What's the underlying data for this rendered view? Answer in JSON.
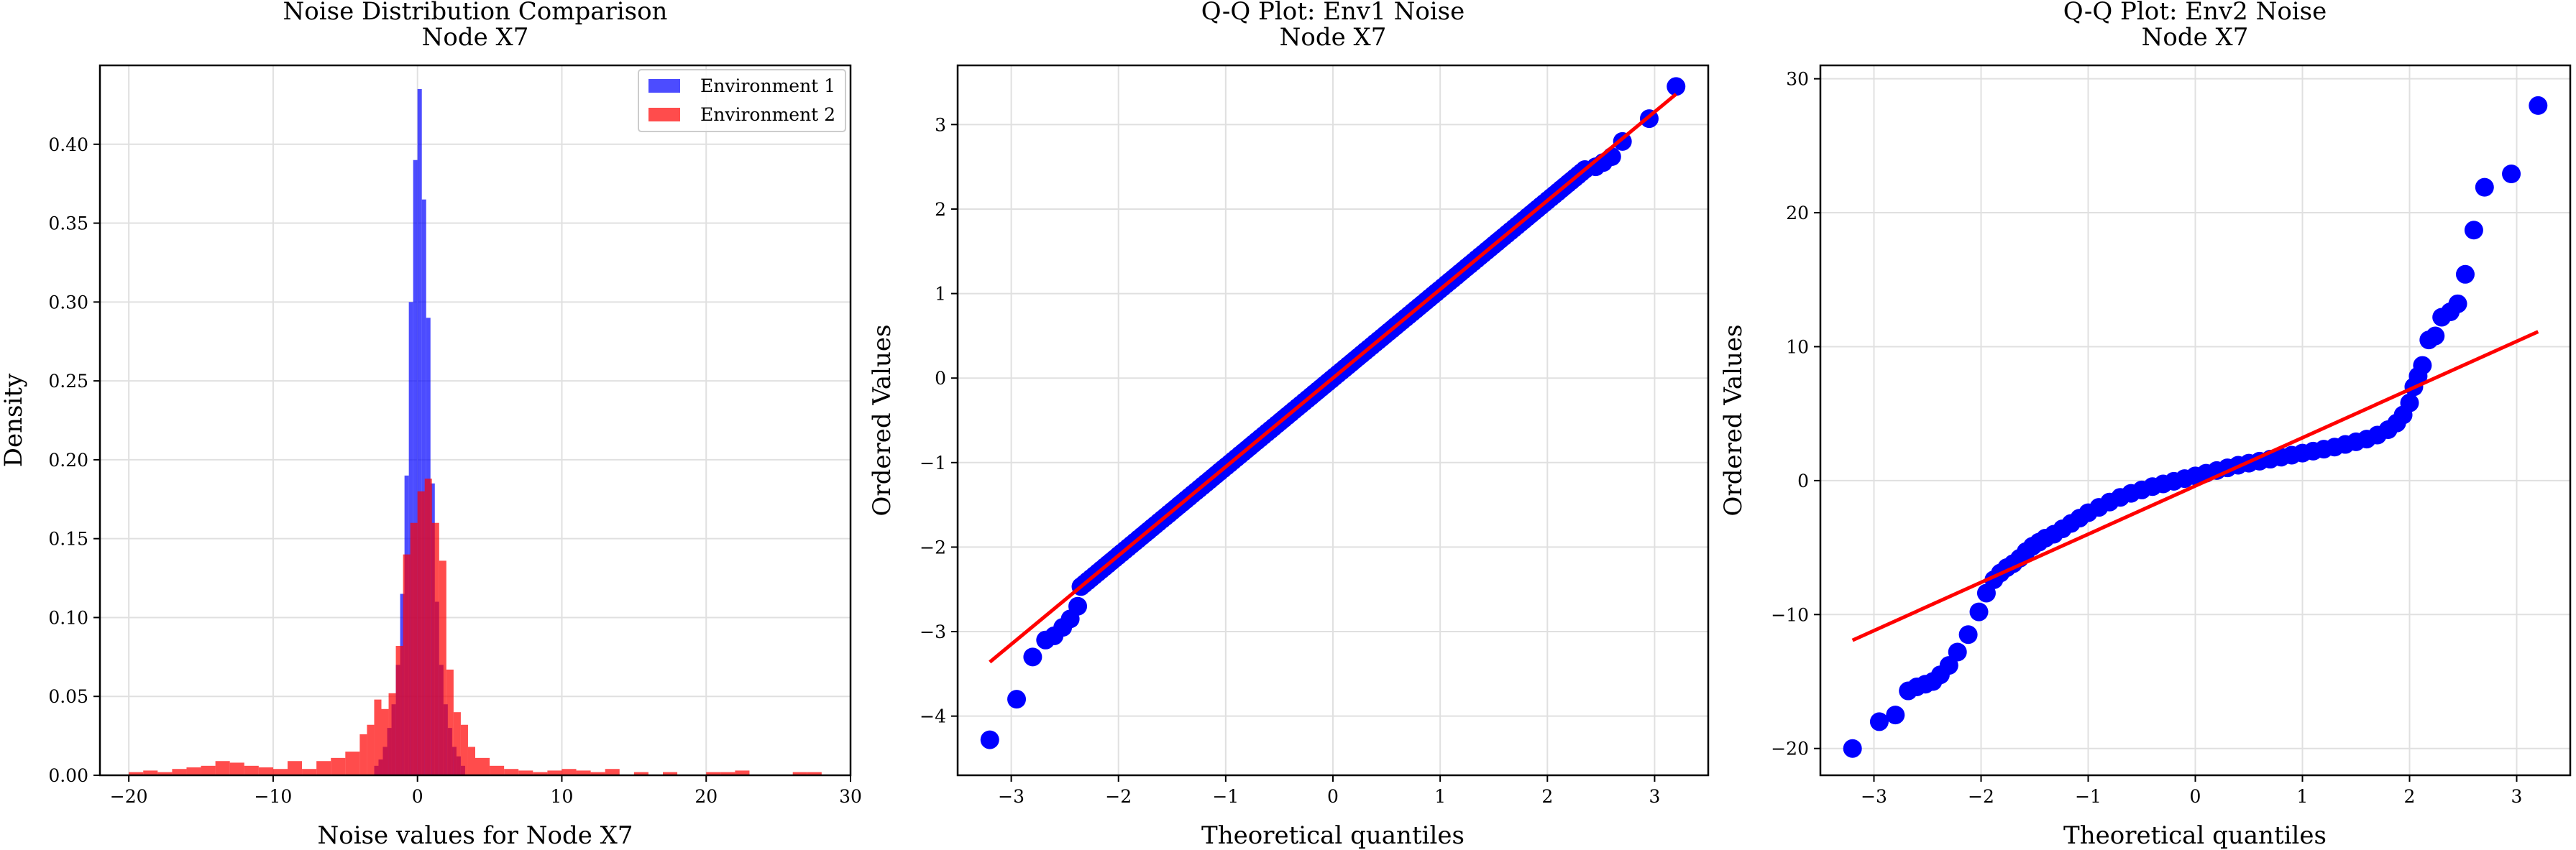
{
  "chart_data": [
    {
      "type": "histogram",
      "title": "Noise Distribution Comparison",
      "subtitle": "Node X7",
      "xlabel": "Noise values for Node X7",
      "ylabel": "Density",
      "xlim": [
        -22,
        30
      ],
      "ylim": [
        0,
        0.45
      ],
      "xticks": [
        -20,
        -10,
        0,
        10,
        20,
        30
      ],
      "yticks": [
        0.0,
        0.05,
        0.1,
        0.15,
        0.2,
        0.25,
        0.3,
        0.35,
        0.4
      ],
      "grid": true,
      "legend": "top-right",
      "colors": {
        "env1": "#0000ff",
        "env2": "#ff0000"
      },
      "series": [
        {
          "name": "Environment 1",
          "color": "#0000ff",
          "alpha": 0.7,
          "bins": [
            [
              -3.0,
              -2.7,
              0.006
            ],
            [
              -2.7,
              -2.4,
              0.01
            ],
            [
              -2.4,
              -2.1,
              0.018
            ],
            [
              -2.1,
              -1.8,
              0.03
            ],
            [
              -1.8,
              -1.5,
              0.045
            ],
            [
              -1.5,
              -1.2,
              0.07
            ],
            [
              -1.2,
              -0.9,
              0.115
            ],
            [
              -0.9,
              -0.6,
              0.19
            ],
            [
              -0.6,
              -0.3,
              0.3
            ],
            [
              -0.3,
              0.0,
              0.39
            ],
            [
              0.0,
              0.3,
              0.435
            ],
            [
              0.3,
              0.6,
              0.365
            ],
            [
              0.6,
              0.9,
              0.29
            ],
            [
              0.9,
              1.2,
              0.185
            ],
            [
              1.2,
              1.5,
              0.11
            ],
            [
              1.5,
              1.8,
              0.07
            ],
            [
              1.8,
              2.1,
              0.045
            ],
            [
              2.1,
              2.4,
              0.03
            ],
            [
              2.4,
              2.7,
              0.018
            ],
            [
              2.7,
              3.0,
              0.012
            ],
            [
              3.0,
              3.3,
              0.006
            ]
          ]
        },
        {
          "name": "Environment 2",
          "color": "#ff0000",
          "alpha": 0.7,
          "bins": [
            [
              -20.0,
              -19.0,
              0.002
            ],
            [
              -19.0,
              -18.0,
              0.003
            ],
            [
              -18.0,
              -17.0,
              0.002
            ],
            [
              -17.0,
              -16.0,
              0.004
            ],
            [
              -16.0,
              -15.0,
              0.005
            ],
            [
              -15.0,
              -14.0,
              0.006
            ],
            [
              -14.0,
              -13.0,
              0.009
            ],
            [
              -13.0,
              -12.0,
              0.008
            ],
            [
              -12.0,
              -11.0,
              0.006
            ],
            [
              -11.0,
              -10.0,
              0.005
            ],
            [
              -10.0,
              -9.0,
              0.004
            ],
            [
              -9.0,
              -8.0,
              0.009
            ],
            [
              -8.0,
              -7.0,
              0.004
            ],
            [
              -7.0,
              -6.0,
              0.009
            ],
            [
              -6.0,
              -5.0,
              0.011
            ],
            [
              -5.0,
              -4.0,
              0.015
            ],
            [
              -4.0,
              -3.5,
              0.026
            ],
            [
              -3.5,
              -3.0,
              0.032
            ],
            [
              -3.0,
              -2.5,
              0.048
            ],
            [
              -2.5,
              -2.0,
              0.042
            ],
            [
              -2.0,
              -1.5,
              0.052
            ],
            [
              -1.5,
              -1.0,
              0.082
            ],
            [
              -1.0,
              -0.5,
              0.14
            ],
            [
              -0.5,
              0.0,
              0.16
            ],
            [
              0.0,
              0.5,
              0.18
            ],
            [
              0.5,
              1.0,
              0.188
            ],
            [
              1.0,
              1.5,
              0.16
            ],
            [
              1.5,
              2.0,
              0.136
            ],
            [
              2.0,
              2.5,
              0.067
            ],
            [
              2.5,
              3.0,
              0.04
            ],
            [
              3.0,
              3.5,
              0.032
            ],
            [
              3.5,
              4.0,
              0.018
            ],
            [
              4.0,
              5.0,
              0.011
            ],
            [
              5.0,
              6.0,
              0.006
            ],
            [
              6.0,
              7.0,
              0.004
            ],
            [
              7.0,
              8.0,
              0.003
            ],
            [
              8.0,
              9.0,
              0.002
            ],
            [
              9.0,
              10.0,
              0.003
            ],
            [
              10.0,
              11.0,
              0.004
            ],
            [
              11.0,
              12.0,
              0.003
            ],
            [
              12.0,
              13.0,
              0.002
            ],
            [
              13.0,
              14.0,
              0.004
            ],
            [
              15.0,
              16.0,
              0.002
            ],
            [
              17.0,
              18.0,
              0.002
            ],
            [
              20.0,
              21.0,
              0.002
            ],
            [
              21.0,
              22.0,
              0.002
            ],
            [
              22.0,
              23.0,
              0.003
            ],
            [
              26.0,
              27.0,
              0.002
            ],
            [
              27.0,
              28.0,
              0.002
            ]
          ]
        }
      ]
    },
    {
      "type": "scatter",
      "title": "Q-Q Plot: Env1 Noise",
      "subtitle": "Node X7",
      "xlabel": "Theoretical quantiles",
      "ylabel": "Ordered Values",
      "xlim": [
        -3.5,
        3.5
      ],
      "ylim": [
        -4.7,
        3.7
      ],
      "xticks": [
        -3,
        -2,
        -1,
        0,
        1,
        2,
        3
      ],
      "yticks": [
        -4,
        -3,
        -2,
        -1,
        0,
        1,
        2,
        3
      ],
      "grid": true,
      "point_color": "#0000ff",
      "line_color": "#ff0000",
      "fit_line": {
        "slope": 1.05,
        "intercept": 0.0,
        "x": [
          -3.2,
          3.2
        ]
      },
      "quantile_range": [
        -2.35,
        2.35
      ],
      "x": [
        -3.2,
        -2.95,
        -2.8,
        -2.68,
        -2.6,
        -2.52,
        -2.45,
        -2.38,
        2.45,
        2.52,
        2.6,
        2.7,
        2.95,
        3.2
      ],
      "y": [
        -4.28,
        -3.8,
        -3.3,
        -3.1,
        -3.05,
        -2.95,
        -2.85,
        -2.7,
        2.5,
        2.55,
        2.62,
        2.8,
        3.07,
        3.45
      ]
    },
    {
      "type": "scatter",
      "title": "Q-Q Plot: Env2 Noise",
      "subtitle": "Node X7",
      "xlabel": "Theoretical quantiles",
      "ylabel": "Ordered Values",
      "xlim": [
        -3.5,
        3.5
      ],
      "ylim": [
        -22,
        31
      ],
      "xticks": [
        -3,
        -2,
        -1,
        0,
        1,
        2,
        3
      ],
      "yticks": [
        -20,
        -10,
        0,
        10,
        20,
        30
      ],
      "grid": true,
      "point_color": "#0000ff",
      "line_color": "#ff0000",
      "fit_line": {
        "slope": 3.6,
        "intercept": -0.4,
        "x": [
          -3.2,
          3.2
        ]
      },
      "x": [
        -3.2,
        -2.95,
        -2.8,
        -2.68,
        -2.6,
        -2.52,
        -2.45,
        -2.38,
        -2.3,
        -2.22,
        -2.12,
        -2.02,
        -1.95,
        -1.88,
        -1.82,
        -1.76,
        -1.7,
        -1.64,
        -1.58,
        -1.52,
        -1.46,
        -1.4,
        -1.32,
        -1.24,
        -1.16,
        -1.08,
        -1.0,
        -0.9,
        -0.8,
        -0.7,
        -0.6,
        -0.5,
        -0.4,
        -0.3,
        -0.2,
        -0.1,
        0.0,
        0.1,
        0.2,
        0.3,
        0.4,
        0.5,
        0.6,
        0.7,
        0.8,
        0.9,
        1.0,
        1.1,
        1.2,
        1.3,
        1.4,
        1.5,
        1.6,
        1.7,
        1.8,
        1.88,
        1.94,
        2.0,
        2.04,
        2.08,
        2.12,
        2.18,
        2.24,
        2.3,
        2.38,
        2.45,
        2.52,
        2.6,
        2.7,
        2.95,
        3.2
      ],
      "y": [
        -20.0,
        -18.0,
        -17.5,
        -15.7,
        -15.4,
        -15.2,
        -15.0,
        -14.5,
        -13.8,
        -12.8,
        -11.5,
        -9.8,
        -8.4,
        -7.4,
        -6.9,
        -6.5,
        -6.2,
        -5.8,
        -5.3,
        -4.9,
        -4.6,
        -4.3,
        -4.0,
        -3.6,
        -3.2,
        -2.8,
        -2.4,
        -2.0,
        -1.6,
        -1.25,
        -0.95,
        -0.7,
        -0.45,
        -0.25,
        -0.05,
        0.15,
        0.35,
        0.55,
        0.75,
        0.95,
        1.15,
        1.3,
        1.45,
        1.6,
        1.75,
        1.9,
        2.05,
        2.2,
        2.35,
        2.5,
        2.7,
        2.9,
        3.1,
        3.4,
        3.8,
        4.3,
        4.9,
        5.8,
        7.0,
        7.8,
        8.6,
        10.5,
        10.8,
        12.2,
        12.6,
        13.2,
        15.4,
        18.7,
        21.9,
        22.9,
        28.0
      ]
    }
  ]
}
